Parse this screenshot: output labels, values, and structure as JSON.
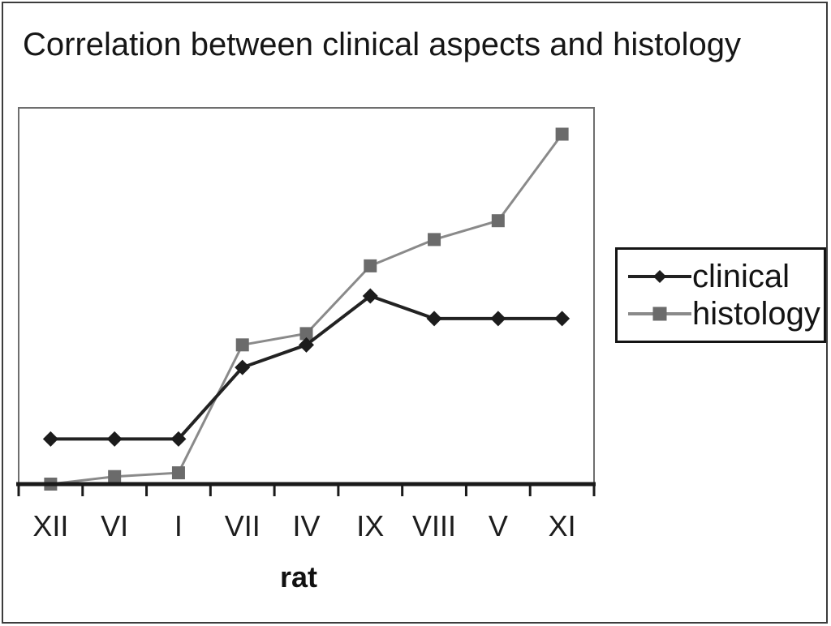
{
  "title": "Correlation between clinical aspects and histology",
  "chart_data": {
    "type": "line",
    "categories": [
      "XII",
      "VI",
      "I",
      "VII",
      "IV",
      "IX",
      "VIII",
      "V",
      "XI"
    ],
    "xlabel": "rat",
    "ylabel": "",
    "ylim": [
      0,
      10
    ],
    "y_axis_labels_visible": false,
    "grid": false,
    "legend_position": "right-outside",
    "series": [
      {
        "name": "clinical",
        "marker": "diamond",
        "color": "#1c1c1c",
        "line_color": "#222222",
        "values": [
          1.2,
          1.2,
          1.2,
          3.1,
          3.7,
          5.0,
          4.4,
          4.4,
          4.4
        ]
      },
      {
        "name": "histology",
        "marker": "square",
        "color": "#6b6b6b",
        "line_color": "#8a8a8a",
        "values": [
          0.0,
          0.2,
          0.3,
          3.7,
          4.0,
          5.8,
          6.5,
          7.0,
          9.3
        ]
      }
    ]
  },
  "colors": {
    "axis": "#1a1a1a",
    "plot_border": "#6e6e6e",
    "frame": "#3c3c3c",
    "text": "#161616"
  }
}
